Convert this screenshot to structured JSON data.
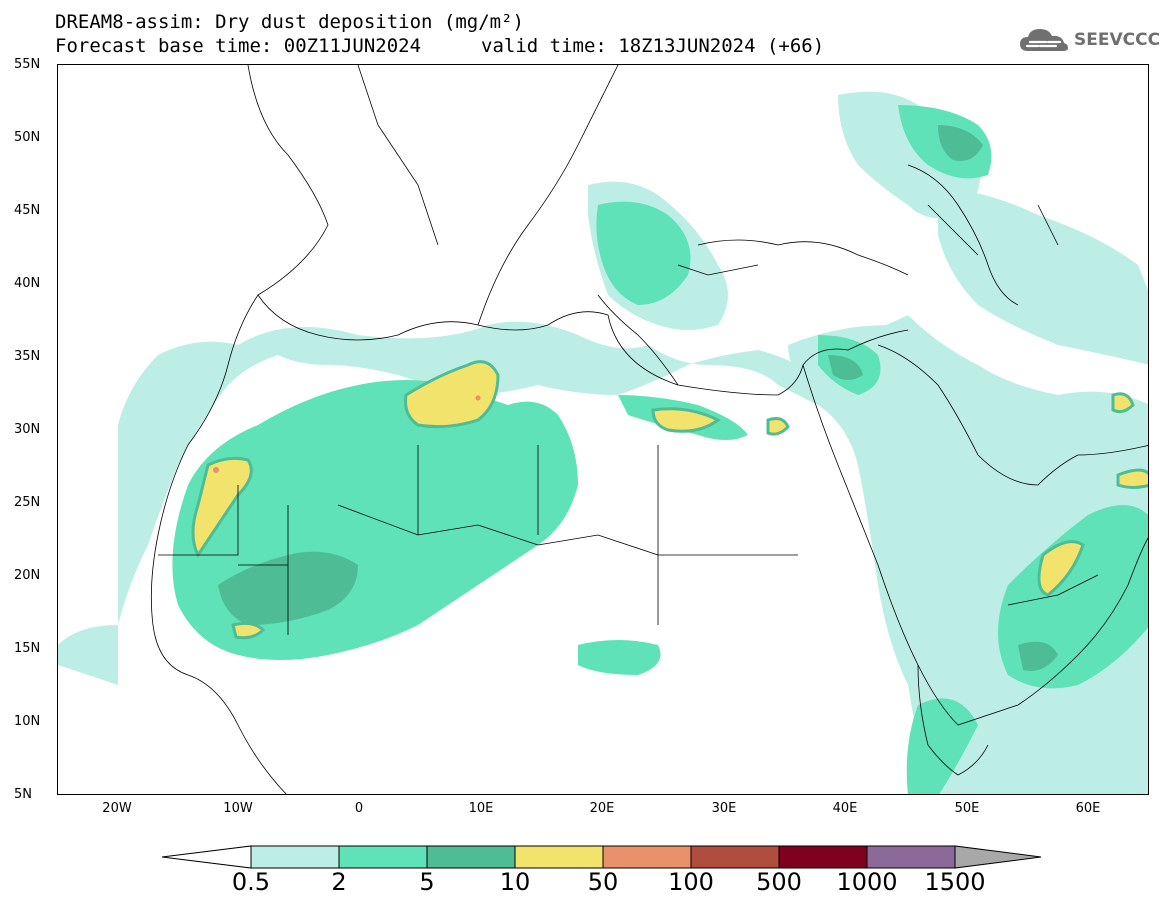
{
  "title": {
    "line1": "DREAM8-assim: Dry dust deposition (mg/m²)",
    "base_time": "Forecast base time: 00Z11JUN2024",
    "valid_time": "valid time: 18Z13JUN2024 (+66)"
  },
  "logo": {
    "text": "SEEVCCC",
    "icon": "cloud-icon"
  },
  "axes": {
    "lat_labels": [
      "55N",
      "50N",
      "45N",
      "40N",
      "35N",
      "30N",
      "25N",
      "20N",
      "15N",
      "10N",
      "5N"
    ],
    "lon_labels": [
      "20W",
      "10W",
      "0",
      "10E",
      "20E",
      "30E",
      "40E",
      "50E",
      "60E"
    ],
    "lat_range": [
      5,
      55
    ],
    "lon_range": [
      -25,
      65
    ]
  },
  "colorbar": {
    "labels": [
      "0.5",
      "2",
      "5",
      "10",
      "50",
      "100",
      "500",
      "1000",
      "1500"
    ],
    "colors": [
      "#bdeee6",
      "#5fe2b7",
      "#4ebd96",
      "#f1e36b",
      "#e9916a",
      "#b04d3e",
      "#800020",
      "#8b6a9a",
      "#a8a8a8"
    ],
    "under_color": "#ffffff"
  },
  "legend_classes": [
    {
      "range": "0.5-2",
      "color": "#bdeee6"
    },
    {
      "range": "2-5",
      "color": "#5fe2b7"
    },
    {
      "range": "5-10",
      "color": "#4ebd96"
    },
    {
      "range": "10-50",
      "color": "#f1e36b"
    },
    {
      "range": "50-100",
      "color": "#e9916a"
    }
  ]
}
